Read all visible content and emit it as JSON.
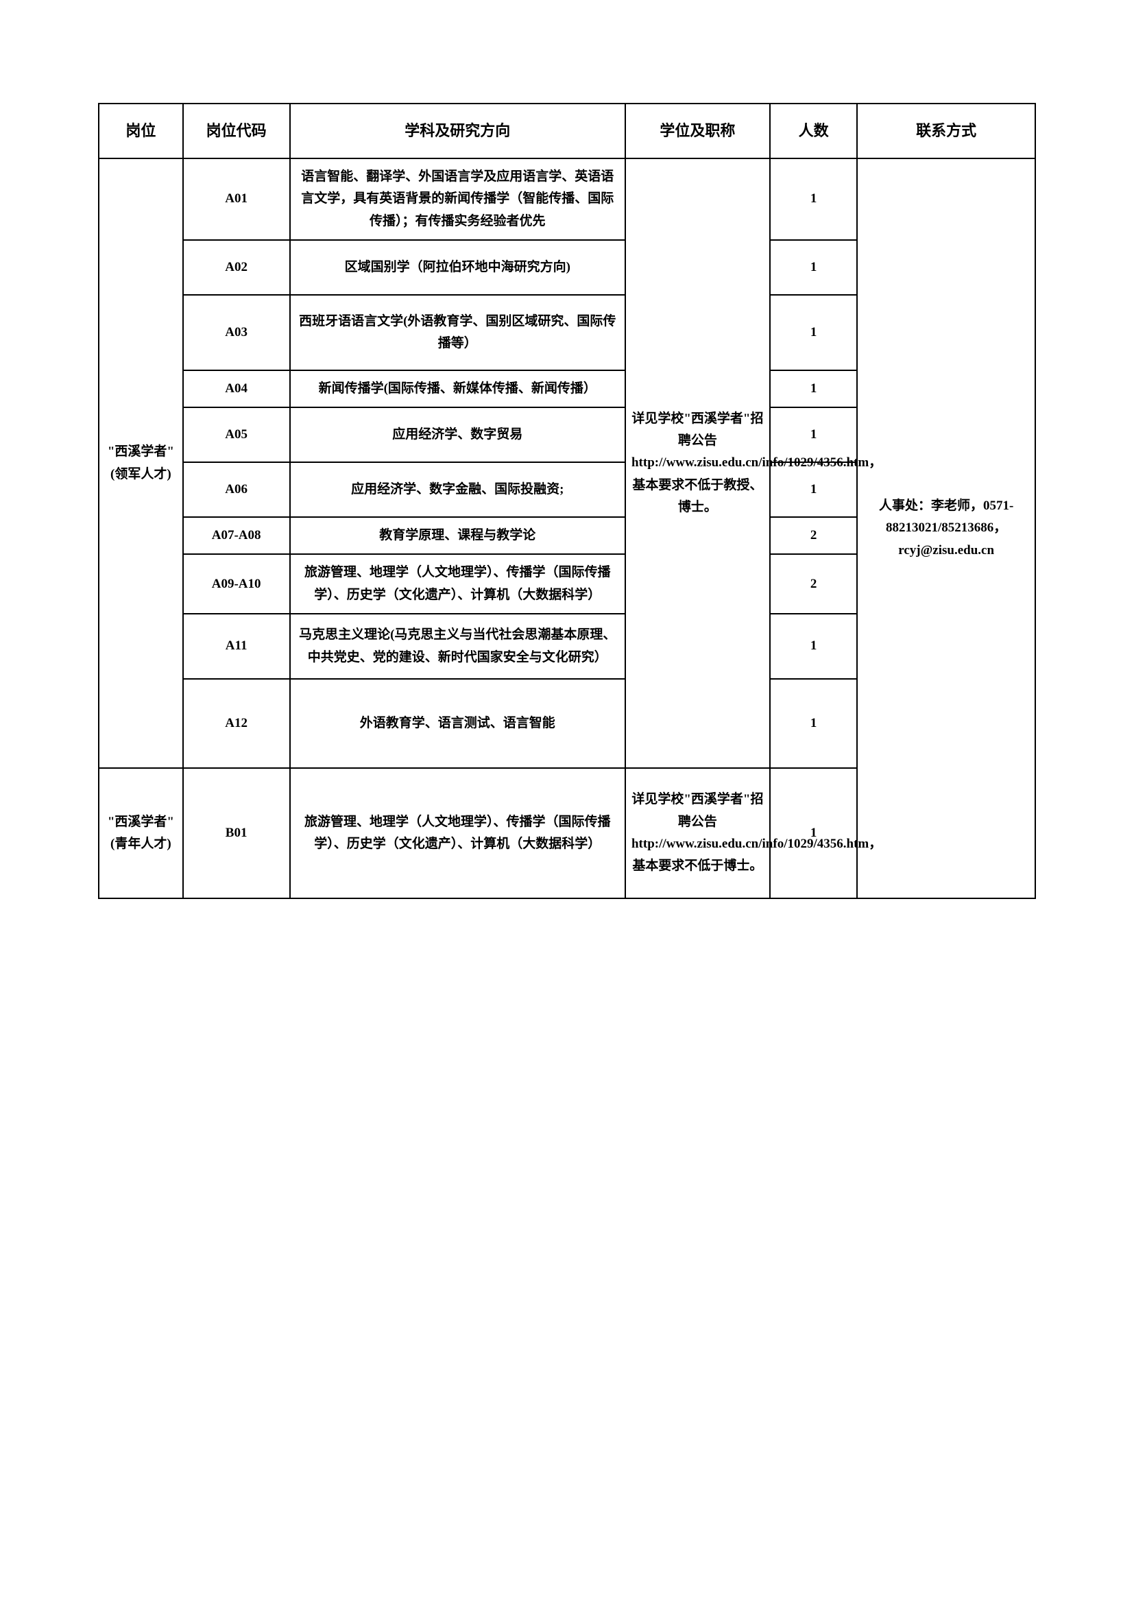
{
  "table": {
    "headers": {
      "position": "岗位",
      "code": "岗位代码",
      "subject": "学科及研究方向",
      "degree": "学位及职称",
      "count": "人数",
      "contact": "联系方式"
    },
    "groups": [
      {
        "position": "\"西溪学者\"(领军人才)",
        "degree": "详见学校\"西溪学者\"招聘公告http://www.zisu.edu.cn/info/1029/4356.htm，基本要求不低于教授、博士。",
        "rows": [
          {
            "code": "A01",
            "subject": "语言智能、翻译学、外国语言学及应用语言学、英语语言文学，具有英语背景的新闻传播学（智能传播、国际传播）；有传播实务经验者优先",
            "count": "1"
          },
          {
            "code": "A02",
            "subject": "区域国别学（阿拉伯环地中海研究方向)",
            "count": "1"
          },
          {
            "code": "A03",
            "subject": "西班牙语语言文学(外语教育学、国别区域研究、国际传播等）",
            "count": "1"
          },
          {
            "code": "A04",
            "subject": "新闻传播学(国际传播、新媒体传播、新闻传播）",
            "count": "1"
          },
          {
            "code": "A05",
            "subject": "应用经济学、数字贸易",
            "count": "1"
          },
          {
            "code": "A06",
            "subject": "应用经济学、数字金融、国际投融资;",
            "count": "1"
          },
          {
            "code": "A07-A08",
            "subject": "教育学原理、课程与教学论",
            "count": "2"
          },
          {
            "code": "A09-A10",
            "subject": "旅游管理、地理学（人文地理学）、传播学（国际传播学）、历史学（文化遗产）、计算机（大数据科学）",
            "count": "2"
          },
          {
            "code": "A11",
            "subject": "马克思主义理论(马克思主义与当代社会思潮基本原理、中共党史、党的建设、新时代国家安全与文化研究）",
            "count": "1"
          },
          {
            "code": "A12",
            "subject": "外语教育学、语言测试、语言智能",
            "count": "1"
          }
        ]
      },
      {
        "position": "\"西溪学者\"(青年人才)",
        "degree": "详见学校\"西溪学者\"招聘公告http://www.zisu.edu.cn/info/1029/4356.htm，基本要求不低于博士。",
        "rows": [
          {
            "code": "B01",
            "subject": "旅游管理、地理学（人文地理学）、传播学（国际传播学）、历史学（文化遗产）、计算机（大数据科学）",
            "count": "1"
          }
        ]
      }
    ],
    "contact": "人事处：李老师，0571-88213021/85213686，rcyj@zisu.edu.cn"
  },
  "style": {
    "row_heights": {
      "A01": 95,
      "A02": 80,
      "A03": 110,
      "A04": 40,
      "A05": 80,
      "A06": 80,
      "A07-A08": 40,
      "A09-A10": 80,
      "A11": 95,
      "A12": 130,
      "B01": 190
    }
  }
}
